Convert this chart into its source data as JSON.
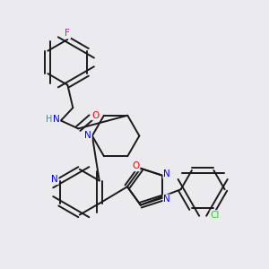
{
  "background_color": "#eaeaef",
  "bond_color": "#1a1a1a",
  "atom_colors": {
    "F": "#ee00ee",
    "N": "#0000ff",
    "O": "#ff0000",
    "Cl": "#22cc22",
    "C": "#1a1a1a",
    "H": "#4a8888"
  },
  "figsize": [
    3.0,
    3.0
  ],
  "dpi": 100
}
